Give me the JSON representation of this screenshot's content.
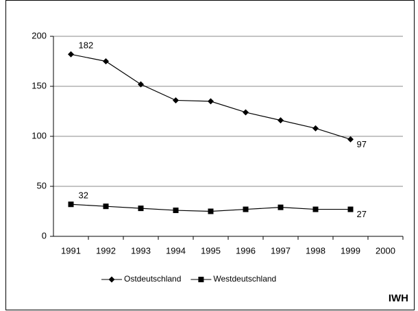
{
  "chart_data": {
    "type": "line",
    "categories": [
      "1991",
      "1992",
      "1993",
      "1994",
      "1995",
      "1996",
      "1997",
      "1998",
      "1999",
      "2000"
    ],
    "series": [
      {
        "name": "Ostdeutschland",
        "color": "#000000",
        "marker": "diamond",
        "values": [
          182,
          175,
          152,
          136,
          135,
          124,
          116,
          108,
          97,
          null
        ],
        "value_labels": [
          "182",
          null,
          null,
          null,
          null,
          null,
          null,
          null,
          "97",
          null
        ]
      },
      {
        "name": "Westdeutschland",
        "color": "#000000",
        "marker": "square",
        "values": [
          32,
          30,
          28,
          26,
          25,
          27,
          29,
          27,
          27,
          null
        ],
        "value_labels": [
          "32",
          null,
          null,
          null,
          null,
          null,
          null,
          null,
          "27",
          null
        ]
      }
    ],
    "ylim": [
      0,
      200
    ],
    "yticks": [
      0,
      50,
      100,
      150,
      200
    ],
    "grid": true,
    "legend": "bottom",
    "source": "IWH"
  }
}
